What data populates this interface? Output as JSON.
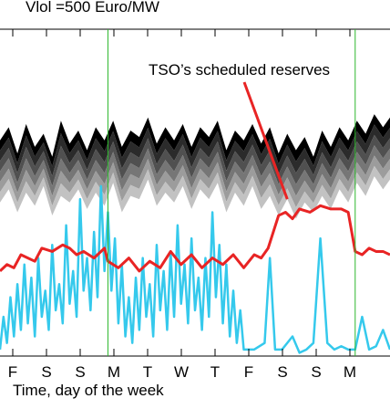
{
  "chart_data": {
    "type": "line",
    "title": "Vlol =500 Euro/MW",
    "xlabel": "Time, day of the week",
    "ylabel": "",
    "x_tick_labels": [
      "F",
      "S",
      "S",
      "M",
      "T",
      "W",
      "T",
      "F",
      "S",
      "S",
      "M"
    ],
    "xlim": [
      0,
      11.2
    ],
    "ylim": [
      0,
      100
    ],
    "grid": false,
    "annotations": [
      {
        "text": "TSO’s scheduled reserves",
        "x": 10.3,
        "y": 85,
        "arrow_to": {
          "x": 8.25,
          "y": 48
        }
      }
    ],
    "vertical_markers": [
      {
        "x": 3.1,
        "color": "#2db82d"
      },
      {
        "x": 10.2,
        "color": "#2db82d"
      }
    ],
    "band": {
      "colors": [
        "#000000",
        "#2b2b2b",
        "#505050",
        "#767676",
        "#9c9c9c",
        "#c2c2c2"
      ],
      "x": [
        0.0,
        0.25,
        0.5,
        0.75,
        1.0,
        1.25,
        1.5,
        1.75,
        2.0,
        2.25,
        2.5,
        2.75,
        3.0,
        3.25,
        3.5,
        3.75,
        4.0,
        4.25,
        4.5,
        4.75,
        5.0,
        5.25,
        5.5,
        5.75,
        6.0,
        6.25,
        6.5,
        6.75,
        7.0,
        7.25,
        7.5,
        7.75,
        8.0,
        8.25,
        8.5,
        8.75,
        9.0,
        9.25,
        9.5,
        9.75,
        10.0,
        10.25,
        10.5,
        10.75,
        11.0,
        11.2
      ],
      "upper": [
        66,
        70,
        62,
        71,
        64,
        68,
        61,
        72,
        65,
        69,
        63,
        70,
        66,
        72,
        64,
        69,
        67,
        73,
        65,
        70,
        66,
        71,
        64,
        70,
        67,
        72,
        63,
        69,
        66,
        71,
        65,
        70,
        62,
        68,
        63,
        67,
        61,
        69,
        64,
        70,
        66,
        72,
        68,
        74,
        70,
        73
      ],
      "lower": [
        47,
        51,
        44,
        50,
        46,
        52,
        43,
        49,
        47,
        51,
        45,
        50,
        46,
        53,
        44,
        49,
        48,
        54,
        46,
        50,
        47,
        52,
        45,
        51,
        48,
        53,
        44,
        50,
        46,
        52,
        45,
        49,
        43,
        48,
        42,
        47,
        44,
        49,
        45,
        51,
        47,
        53,
        49,
        55,
        51,
        54
      ]
    },
    "series": [
      {
        "name": "TSO’s scheduled reserves",
        "color": "#e82424",
        "x": [
          0.0,
          0.2,
          0.4,
          0.6,
          0.8,
          1.0,
          1.2,
          1.5,
          1.8,
          2.0,
          2.2,
          2.4,
          2.7,
          3.0,
          3.1,
          3.4,
          3.7,
          4.0,
          4.3,
          4.6,
          4.9,
          5.2,
          5.5,
          5.8,
          6.1,
          6.4,
          6.7,
          7.0,
          7.3,
          7.5,
          7.7,
          8.0,
          8.2,
          8.4,
          8.6,
          8.9,
          9.2,
          9.5,
          9.8,
          10.0,
          10.2,
          10.4,
          10.6,
          10.8,
          11.0,
          11.2
        ],
        "values": [
          26,
          28,
          27,
          31,
          30,
          29,
          33,
          32,
          34,
          33,
          31,
          32,
          30,
          33,
          29,
          27,
          30,
          26,
          29,
          27,
          32,
          28,
          31,
          27,
          30,
          28,
          31,
          27,
          31,
          30,
          33,
          43,
          44,
          42,
          45,
          44,
          46,
          45,
          45,
          44,
          32,
          31,
          33,
          32,
          32,
          31
        ]
      },
      {
        "name": "",
        "color": "#35c9ec",
        "x": [
          0.0,
          0.1,
          0.2,
          0.3,
          0.4,
          0.5,
          0.6,
          0.7,
          0.8,
          0.9,
          1.0,
          1.1,
          1.2,
          1.3,
          1.4,
          1.5,
          1.6,
          1.7,
          1.8,
          1.9,
          2.0,
          2.1,
          2.2,
          2.3,
          2.4,
          2.5,
          2.6,
          2.7,
          2.8,
          2.9,
          3.0,
          3.1,
          3.2,
          3.3,
          3.4,
          3.5,
          3.6,
          3.7,
          3.8,
          3.9,
          4.0,
          4.1,
          4.2,
          4.3,
          4.4,
          4.5,
          4.6,
          4.7,
          4.8,
          4.9,
          5.0,
          5.1,
          5.2,
          5.3,
          5.4,
          5.5,
          5.6,
          5.7,
          5.8,
          5.9,
          6.0,
          6.1,
          6.2,
          6.3,
          6.4,
          6.5,
          6.6,
          6.7,
          6.8,
          6.9,
          7.0,
          7.3,
          7.6,
          7.75,
          7.9,
          8.1,
          8.4,
          8.6,
          8.8,
          9.0,
          9.2,
          9.4,
          9.6,
          9.8,
          10.0,
          10.2,
          10.4,
          10.6,
          10.8,
          11.0,
          11.2
        ],
        "values": [
          2,
          12,
          4,
          18,
          6,
          22,
          8,
          28,
          10,
          24,
          6,
          30,
          12,
          20,
          8,
          34,
          14,
          22,
          10,
          40,
          16,
          26,
          12,
          48,
          20,
          30,
          14,
          38,
          18,
          52,
          26,
          44,
          20,
          36,
          10,
          28,
          6,
          18,
          4,
          24,
          8,
          30,
          12,
          22,
          6,
          34,
          14,
          26,
          8,
          32,
          12,
          40,
          16,
          28,
          10,
          36,
          14,
          24,
          8,
          30,
          12,
          44,
          18,
          34,
          10,
          28,
          6,
          20,
          4,
          14,
          2,
          2,
          4,
          30,
          2,
          2,
          6,
          1,
          2,
          4,
          36,
          4,
          2,
          3,
          2,
          2,
          12,
          2,
          3,
          8,
          2
        ]
      }
    ]
  }
}
